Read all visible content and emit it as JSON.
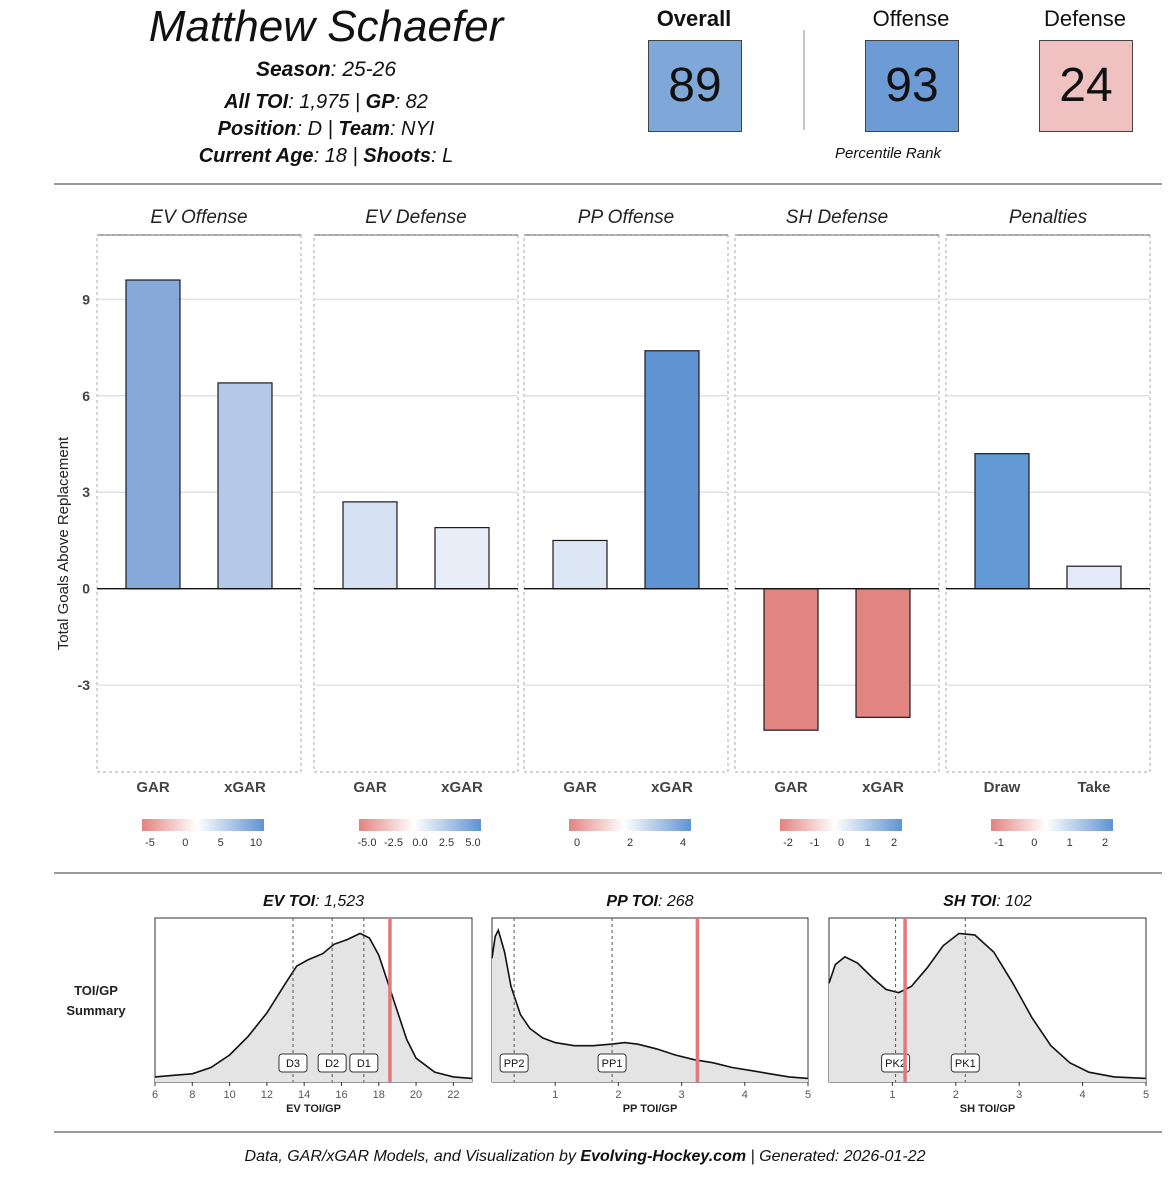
{
  "header": {
    "player_name": "Matthew Schaefer",
    "season_label": "Season",
    "season_value": ": 25-26",
    "toi_label": "All TOI",
    "toi_value": ": 1,975 | ",
    "gp_label": "GP",
    "gp_value": ": 82",
    "position_label": "Position",
    "position_value": ": D | ",
    "team_label": "Team",
    "team_value": ": NYI",
    "age_label": "Current Age",
    "age_value": ": 18 | ",
    "shoots_label": "Shoots",
    "shoots_value": ": L"
  },
  "scores": {
    "overall_label": "Overall",
    "overall_value": "89",
    "overall_color": "#7fa8d9",
    "offense_label": "Offense",
    "offense_value": "93",
    "offense_color": "#6c9bd6",
    "defense_label": "Defense",
    "defense_value": "24",
    "defense_color": "#efc1c1",
    "percentile_caption": "Percentile Rank"
  },
  "chart_data": [
    {
      "type": "bar",
      "ylabel": "Total Goals Above Replacement",
      "ylim": [
        -5.7,
        11.0
      ],
      "yticks": [
        -3,
        0,
        3,
        6,
        9
      ],
      "grid": true,
      "panels": [
        {
          "title": "EV Offense",
          "categories": [
            "GAR",
            "xGAR"
          ],
          "values": [
            9.6,
            6.4
          ],
          "bar_colors": [
            "#86a9da",
            "#b4c9ea"
          ],
          "legend_ticks": [
            "-5",
            "0",
            "5",
            "10"
          ]
        },
        {
          "title": "EV Defense",
          "categories": [
            "GAR",
            "xGAR"
          ],
          "values": [
            2.7,
            1.9
          ],
          "bar_colors": [
            "#d6e1f3",
            "#e8eef8"
          ],
          "legend_ticks": [
            "-5.0",
            "-2.5",
            "0.0",
            "2.5",
            "5.0"
          ]
        },
        {
          "title": "PP Offense",
          "categories": [
            "GAR",
            "xGAR"
          ],
          "values": [
            1.5,
            7.4
          ],
          "bar_colors": [
            "#dde6f5",
            "#5f93d2"
          ],
          "legend_ticks": [
            "0",
            "2",
            "4"
          ]
        },
        {
          "title": "SH Defense",
          "categories": [
            "GAR",
            "xGAR"
          ],
          "values": [
            -4.4,
            -4.0
          ],
          "bar_colors": [
            "#e2847f",
            "#e2847f"
          ],
          "legend_ticks": [
            "-2",
            "-1",
            "0",
            "1",
            "2"
          ]
        },
        {
          "title": "Penalties",
          "categories": [
            "Draw",
            "Take"
          ],
          "values": [
            4.2,
            0.7
          ],
          "bar_colors": [
            "#6399d4",
            "#e3eaf7"
          ],
          "legend_ticks": [
            "-1",
            "0",
            "1",
            "2"
          ]
        }
      ]
    },
    {
      "type": "area",
      "row_label_line1": "TOI/GP",
      "row_label_line2": "Summary",
      "panels": [
        {
          "title_bold": "EV TOI",
          "title_rest": ": 1,523",
          "xlabel": "EV TOI/GP",
          "xlim": [
            6,
            23
          ],
          "xticks": [
            "6",
            "8",
            "10",
            "12",
            "14",
            "16",
            "18",
            "20",
            "22"
          ],
          "density": [
            [
              6,
              0.02
            ],
            [
              7,
              0.03
            ],
            [
              8,
              0.04
            ],
            [
              9,
              0.08
            ],
            [
              10,
              0.16
            ],
            [
              11,
              0.28
            ],
            [
              12,
              0.43
            ],
            [
              13,
              0.62
            ],
            [
              13.6,
              0.73
            ],
            [
              14.2,
              0.77
            ],
            [
              15,
              0.81
            ],
            [
              15.6,
              0.87
            ],
            [
              16.3,
              0.9
            ],
            [
              17,
              0.94
            ],
            [
              17.5,
              0.91
            ],
            [
              18,
              0.8
            ],
            [
              18.5,
              0.62
            ],
            [
              19,
              0.44
            ],
            [
              19.5,
              0.26
            ],
            [
              20,
              0.14
            ],
            [
              21,
              0.05
            ],
            [
              22,
              0.02
            ],
            [
              23,
              0.01
            ]
          ],
          "reference_lines": [
            {
              "label": "D3",
              "x": 13.4
            },
            {
              "label": "D2",
              "x": 15.5
            },
            {
              "label": "D1",
              "x": 17.2
            }
          ],
          "player_x": 18.6
        },
        {
          "title_bold": "PP TOI",
          "title_rest": ": 268",
          "xlabel": "PP TOI/GP",
          "xlim": [
            0,
            5
          ],
          "xticks": [
            "1",
            "2",
            "3",
            "4",
            "5"
          ],
          "density": [
            [
              0,
              0.78
            ],
            [
              0.05,
              0.92
            ],
            [
              0.1,
              0.96
            ],
            [
              0.2,
              0.82
            ],
            [
              0.3,
              0.6
            ],
            [
              0.45,
              0.42
            ],
            [
              0.6,
              0.33
            ],
            [
              0.8,
              0.27
            ],
            [
              1,
              0.24
            ],
            [
              1.3,
              0.22
            ],
            [
              1.6,
              0.22
            ],
            [
              1.9,
              0.23
            ],
            [
              2.1,
              0.24
            ],
            [
              2.3,
              0.23
            ],
            [
              2.6,
              0.2
            ],
            [
              2.9,
              0.16
            ],
            [
              3.2,
              0.13
            ],
            [
              3.5,
              0.11
            ],
            [
              3.8,
              0.08
            ],
            [
              4.1,
              0.06
            ],
            [
              4.4,
              0.04
            ],
            [
              4.7,
              0.02
            ],
            [
              5,
              0.01
            ]
          ],
          "reference_lines": [
            {
              "label": "PP2",
              "x": 0.35
            },
            {
              "label": "PP1",
              "x": 1.9
            }
          ],
          "player_x": 3.25
        },
        {
          "title_bold": "SH TOI",
          "title_rest": ": 102",
          "xlabel": "SH TOI/GP",
          "xlim": [
            0,
            5
          ],
          "xticks": [
            "1",
            "2",
            "3",
            "4",
            "5"
          ],
          "density": [
            [
              0,
              0.62
            ],
            [
              0.1,
              0.74
            ],
            [
              0.25,
              0.79
            ],
            [
              0.45,
              0.75
            ],
            [
              0.7,
              0.65
            ],
            [
              0.9,
              0.58
            ],
            [
              1.1,
              0.56
            ],
            [
              1.3,
              0.6
            ],
            [
              1.55,
              0.72
            ],
            [
              1.8,
              0.86
            ],
            [
              2.05,
              0.94
            ],
            [
              2.3,
              0.93
            ],
            [
              2.6,
              0.82
            ],
            [
              2.9,
              0.62
            ],
            [
              3.2,
              0.4
            ],
            [
              3.5,
              0.22
            ],
            [
              3.8,
              0.11
            ],
            [
              4.1,
              0.05
            ],
            [
              4.5,
              0.02
            ],
            [
              5,
              0.01
            ]
          ],
          "reference_lines": [
            {
              "label": "PK2",
              "x": 1.05
            },
            {
              "label": "PK1",
              "x": 2.15
            }
          ],
          "player_x": 1.2
        }
      ]
    }
  ],
  "footer": {
    "prefix": "Data, GAR/xGAR Models, and Visualization by ",
    "brand": "Evolving-Hockey.com",
    "suffix": " | Generated: 2026-01-22"
  },
  "colors": {
    "positive_blue": "#5f93d2",
    "negative_red": "#e2847f",
    "player_line": "#e07a7a",
    "density_fill": "#e4e4e4",
    "grid": "#dcdcdc"
  }
}
